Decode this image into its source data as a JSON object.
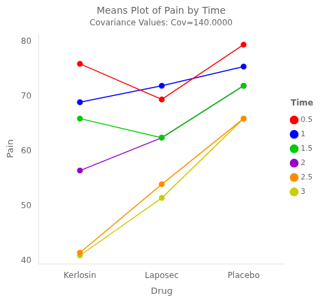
{
  "chart_data": {
    "type": "line",
    "title": "Means Plot of Pain by Time",
    "subtitle": "Covariance Values: Cov=140.0000",
    "xlabel": "Drug",
    "ylabel": "Pain",
    "categories": [
      "Kerlosin",
      "Laposec",
      "Placebo"
    ],
    "series": [
      {
        "name": "0.5",
        "color": "#FF0000",
        "values": [
          76,
          69.5,
          79.5
        ]
      },
      {
        "name": "1",
        "color": "#0000FF",
        "values": [
          69,
          72,
          75.5
        ]
      },
      {
        "name": "1.5",
        "color": "#00CC00",
        "values": [
          66,
          62.5,
          72
        ]
      },
      {
        "name": "2",
        "color": "#9900CC",
        "values": [
          56.5,
          62.5,
          72
        ]
      },
      {
        "name": "2.5",
        "color": "#FF8C00",
        "values": [
          41.5,
          54,
          66
        ]
      },
      {
        "name": "3",
        "color": "#CCCC00",
        "values": [
          41,
          51.5,
          66
        ]
      }
    ],
    "legend_title": "Time",
    "legend": "right",
    "marker": "circle",
    "ylim": [
      39.5,
      81.5
    ],
    "yticks": [
      40,
      50,
      60,
      70,
      80
    ],
    "grid": false
  }
}
